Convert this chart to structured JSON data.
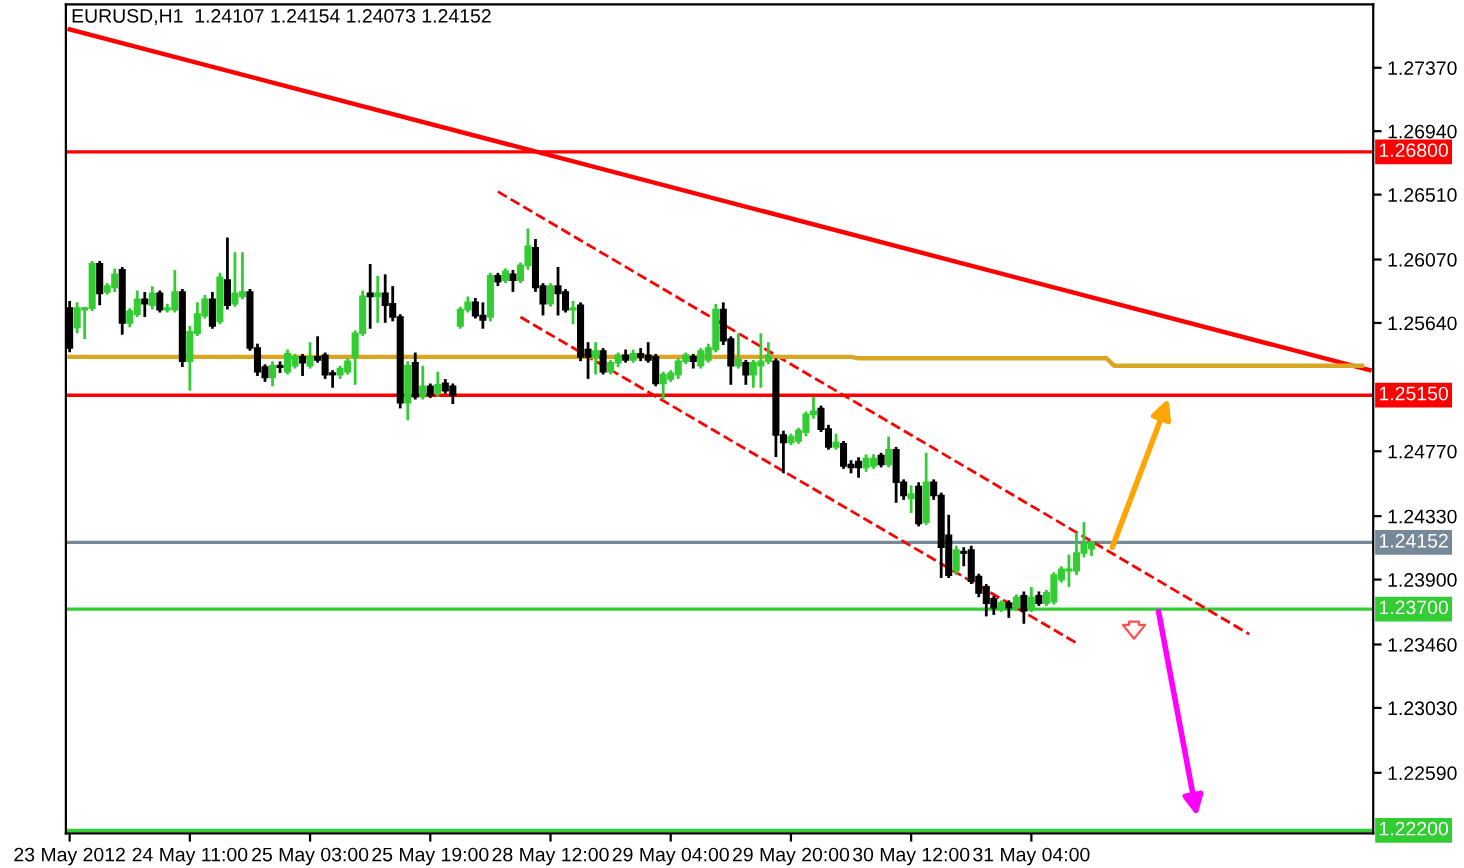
{
  "chart_data": {
    "type": "candlestick",
    "title": "EURUSD,H1  1.24107 1.24154 1.24073 1.24152",
    "categories": [
      "23 May 2012",
      null,
      null,
      null,
      null,
      null,
      null,
      null,
      null,
      null,
      null,
      null,
      null,
      null,
      null,
      null,
      "24 May 11:00",
      null,
      null,
      null,
      null,
      null,
      null,
      null,
      null,
      null,
      null,
      null,
      null,
      null,
      null,
      null,
      "25 May 03:00",
      null,
      null,
      null,
      null,
      null,
      null,
      null,
      null,
      null,
      null,
      null,
      null,
      null,
      null,
      null,
      "25 May 19:00",
      null,
      null,
      null,
      null,
      null,
      null,
      null,
      null,
      null,
      null,
      null,
      null,
      null,
      null,
      null,
      "28 May 12:00",
      null,
      null,
      null,
      null,
      null,
      null,
      null,
      null,
      null,
      null,
      null,
      null,
      null,
      null,
      null,
      "29 May 04:00",
      null,
      null,
      null,
      null,
      null,
      null,
      null,
      null,
      null,
      null,
      null,
      null,
      null,
      null,
      null,
      "29 May 20:00",
      null,
      null,
      null,
      null,
      null,
      null,
      null,
      null,
      null,
      null,
      null,
      null,
      null,
      null,
      null,
      "30 May 12:00",
      null,
      null,
      null,
      null,
      null,
      null,
      null,
      null,
      null,
      null,
      null,
      null,
      null,
      null,
      null,
      "31 May 04:00",
      null,
      null,
      null,
      null,
      null,
      null,
      null,
      null,
      null,
      null,
      null,
      null,
      null,
      null,
      null,
      null,
      null,
      null,
      null,
      null,
      null,
      null,
      null,
      null,
      null,
      null,
      null,
      null,
      null,
      null,
      null,
      null,
      null,
      null,
      null,
      null,
      null,
      null,
      null,
      null,
      null,
      null,
      null,
      null,
      null
    ],
    "ohlc": [
      [
        1.2574,
        1.2578,
        1.2545,
        1.2547
      ],
      [
        1.2561,
        1.2577,
        1.2558,
        1.2574
      ],
      [
        1.2573,
        1.2574,
        1.2554,
        1.2574
      ],
      [
        1.2574,
        1.2605,
        1.2573,
        1.2604
      ],
      [
        1.2604,
        1.2605,
        1.2577,
        1.2584
      ],
      [
        1.2585,
        1.259,
        1.2584,
        1.2589
      ],
      [
        1.2588,
        1.26,
        1.2586,
        1.2597
      ],
      [
        1.26,
        1.2601,
        1.2557,
        1.2564
      ],
      [
        1.2564,
        1.2573,
        1.2562,
        1.2572
      ],
      [
        1.257,
        1.2585,
        1.2569,
        1.258
      ],
      [
        1.258,
        1.2584,
        1.2569,
        1.2577
      ],
      [
        1.2576,
        1.2588,
        1.2574,
        1.2584
      ],
      [
        1.2584,
        1.2585,
        1.2572,
        1.2573
      ],
      [
        1.2573,
        1.2576,
        1.2572,
        1.2574
      ],
      [
        1.2573,
        1.2599,
        1.2572,
        1.2585
      ],
      [
        1.2585,
        1.2586,
        1.2535,
        1.2538
      ],
      [
        1.2538,
        1.2561,
        1.2519,
        1.2558
      ],
      [
        1.2557,
        1.2577,
        1.2556,
        1.257
      ],
      [
        1.2569,
        1.2582,
        1.2568,
        1.258
      ],
      [
        1.258,
        1.2584,
        1.2561,
        1.2562
      ],
      [
        1.2565,
        1.2597,
        1.2564,
        1.2595
      ],
      [
        1.2593,
        1.2621,
        1.2574,
        1.2576
      ],
      [
        1.2577,
        1.2611,
        1.2576,
        1.2584
      ],
      [
        1.2582,
        1.2611,
        1.2581,
        1.2585
      ],
      [
        1.2585,
        1.2586,
        1.2546,
        1.2547
      ],
      [
        1.2547,
        1.2549,
        1.2529,
        1.2531
      ],
      [
        1.2534,
        1.2535,
        1.2525,
        1.2527
      ],
      [
        1.2527,
        1.2537,
        1.2522,
        1.2535
      ],
      [
        1.2535,
        1.2537,
        1.2531,
        1.2534
      ],
      [
        1.2531,
        1.2545,
        1.253,
        1.2543
      ],
      [
        1.2535,
        1.2542,
        1.2534,
        1.2541
      ],
      [
        1.2541,
        1.2542,
        1.2529,
        1.2537
      ],
      [
        1.2535,
        1.255,
        1.2534,
        1.2541
      ],
      [
        1.2541,
        1.2554,
        1.2538,
        1.2539
      ],
      [
        1.2542,
        1.2543,
        1.2527,
        1.2529
      ],
      [
        1.253,
        1.2531,
        1.2521,
        1.2529
      ],
      [
        1.2529,
        1.2534,
        1.2527,
        1.2533
      ],
      [
        1.2531,
        1.2539,
        1.253,
        1.2538
      ],
      [
        1.2541,
        1.2558,
        1.2523,
        1.2557
      ],
      [
        1.2557,
        1.2585,
        1.2556,
        1.2582
      ],
      [
        1.2584,
        1.2603,
        1.2561,
        1.2582
      ],
      [
        1.2582,
        1.2595,
        1.2565,
        1.2584
      ],
      [
        1.2584,
        1.2596,
        1.2565,
        1.2576
      ],
      [
        1.2577,
        1.2588,
        1.2566,
        1.2568
      ],
      [
        1.2568,
        1.2569,
        1.2507,
        1.251
      ],
      [
        1.251,
        1.2537,
        1.2499,
        1.2535
      ],
      [
        1.2537,
        1.2543,
        1.2513,
        1.2514
      ],
      [
        1.2514,
        1.2534,
        1.2513,
        1.2521
      ],
      [
        1.2521,
        1.2522,
        1.2514,
        1.2515
      ],
      [
        1.2517,
        1.253,
        1.2515,
        1.2522
      ],
      [
        1.2523,
        1.2525,
        1.2517,
        1.2518
      ],
      [
        1.2521,
        1.2522,
        1.251,
        1.2515
      ],
      [
        1.2562,
        1.2574,
        1.2561,
        1.2573
      ],
      [
        1.2573,
        1.2581,
        1.2572,
        1.2578
      ],
      [
        1.2578,
        1.258,
        1.2568,
        1.2569
      ],
      [
        1.2569,
        1.2577,
        1.2561,
        1.2566
      ],
      [
        1.2568,
        1.2597,
        1.2566,
        1.2596
      ],
      [
        1.2596,
        1.2597,
        1.259,
        1.2592
      ],
      [
        1.2593,
        1.26,
        1.2592,
        1.2599
      ],
      [
        1.2597,
        1.2599,
        1.2586,
        1.2593
      ],
      [
        1.2593,
        1.2604,
        1.2592,
        1.2603
      ],
      [
        1.2603,
        1.2627,
        1.2601,
        1.2616
      ],
      [
        1.2615,
        1.262,
        1.2586,
        1.2588
      ],
      [
        1.2589,
        1.259,
        1.257,
        1.2577
      ],
      [
        1.2577,
        1.259,
        1.2576,
        1.2589
      ],
      [
        1.2589,
        1.2601,
        1.257,
        1.2584
      ],
      [
        1.2585,
        1.2586,
        1.2572,
        1.2573
      ],
      [
        1.2573,
        1.2578,
        1.2564,
        1.2574
      ],
      [
        1.2576,
        1.2577,
        1.2539,
        1.2541
      ],
      [
        1.2546,
        1.255,
        1.2527,
        1.2541
      ],
      [
        1.2541,
        1.255,
        1.253,
        1.2545
      ],
      [
        1.2545,
        1.2546,
        1.253,
        1.2531
      ],
      [
        1.2531,
        1.2538,
        1.253,
        1.2537
      ],
      [
        1.2537,
        1.2543,
        1.2535,
        1.2542
      ],
      [
        1.2542,
        1.2545,
        1.2538,
        1.2539
      ],
      [
        1.2539,
        1.2545,
        1.2538,
        1.2543
      ],
      [
        1.2543,
        1.2546,
        1.2539,
        1.2541
      ],
      [
        1.2542,
        1.255,
        1.2538,
        1.2539
      ],
      [
        1.2541,
        1.2542,
        1.2522,
        1.2523
      ],
      [
        1.2523,
        1.253,
        1.2513,
        1.2529
      ],
      [
        1.2526,
        1.2531,
        1.2525,
        1.253
      ],
      [
        1.2529,
        1.2539,
        1.2527,
        1.2538
      ],
      [
        1.2538,
        1.2543,
        1.2537,
        1.2542
      ],
      [
        1.2541,
        1.2542,
        1.2534,
        1.2538
      ],
      [
        1.2535,
        1.2546,
        1.2534,
        1.2545
      ],
      [
        1.2539,
        1.2549,
        1.2538,
        1.2547
      ],
      [
        1.2546,
        1.2576,
        1.2545,
        1.2573
      ],
      [
        1.2573,
        1.2577,
        1.255,
        1.2552
      ],
      [
        1.2553,
        1.2554,
        1.2523,
        1.2535
      ],
      [
        1.2535,
        1.2556,
        1.2534,
        1.2539
      ],
      [
        1.2537,
        1.2538,
        1.2523,
        1.2529
      ],
      [
        1.2529,
        1.2538,
        1.2521,
        1.2537
      ],
      [
        1.2535,
        1.2556,
        1.2521,
        1.2538
      ],
      [
        1.2538,
        1.255,
        1.2537,
        1.2542
      ],
      [
        1.2538,
        1.2539,
        1.2474,
        1.2488
      ],
      [
        1.2488,
        1.249,
        1.2463,
        1.2483
      ],
      [
        1.2483,
        1.2488,
        1.2482,
        1.2487
      ],
      [
        1.2484,
        1.2492,
        1.2483,
        1.2491
      ],
      [
        1.249,
        1.2503,
        1.2488,
        1.2502
      ],
      [
        1.2502,
        1.2513,
        1.25,
        1.2504
      ],
      [
        1.2506,
        1.2507,
        1.2491,
        1.2492
      ],
      [
        1.2492,
        1.2494,
        1.2479,
        1.248
      ],
      [
        1.248,
        1.2488,
        1.2479,
        1.2483
      ],
      [
        1.2482,
        1.2483,
        1.2466,
        1.2467
      ],
      [
        1.2468,
        1.247,
        1.2463,
        1.2466
      ],
      [
        1.247,
        1.2472,
        1.246,
        1.2466
      ],
      [
        1.2466,
        1.2474,
        1.2464,
        1.2472
      ],
      [
        1.2467,
        1.2474,
        1.2466,
        1.2472
      ],
      [
        1.2474,
        1.2475,
        1.2467,
        1.2468
      ],
      [
        1.2468,
        1.2486,
        1.2467,
        1.2478
      ],
      [
        1.2478,
        1.2479,
        1.2443,
        1.2456
      ],
      [
        1.2456,
        1.2457,
        1.2445,
        1.2447
      ],
      [
        1.2445,
        1.2453,
        1.2436,
        1.2448
      ],
      [
        1.2453,
        1.2455,
        1.2427,
        1.2428
      ],
      [
        1.2429,
        1.2475,
        1.2428,
        1.2456
      ],
      [
        1.2456,
        1.2457,
        1.2445,
        1.2447
      ],
      [
        1.2447,
        1.2448,
        1.2392,
        1.2412
      ],
      [
        1.242,
        1.2433,
        1.2392,
        1.2393
      ],
      [
        1.2396,
        1.2412,
        1.2394,
        1.241
      ],
      [
        1.2409,
        1.2411,
        1.24,
        1.2408
      ],
      [
        1.241,
        1.2412,
        1.2388,
        1.2389
      ],
      [
        1.2392,
        1.2393,
        1.2379,
        1.2381
      ],
      [
        1.2385,
        1.2386,
        1.2366,
        1.2374
      ],
      [
        1.2377,
        1.2378,
        1.2367,
        1.2371
      ],
      [
        1.237,
        1.2375,
        1.2369,
        1.2374
      ],
      [
        1.2374,
        1.2375,
        1.2365,
        1.2371
      ],
      [
        1.2371,
        1.2379,
        1.237,
        1.2378
      ],
      [
        1.2379,
        1.2381,
        1.2361,
        1.2369
      ],
      [
        1.237,
        1.2384,
        1.2369,
        1.2378
      ],
      [
        1.2379,
        1.2381,
        1.2373,
        1.2374
      ],
      [
        1.2374,
        1.2382,
        1.2373,
        1.2381
      ],
      [
        1.2375,
        1.2394,
        1.2374,
        1.2393
      ],
      [
        1.239,
        1.2398,
        1.2389,
        1.2397
      ],
      [
        1.2396,
        1.2406,
        1.2386,
        1.2397
      ],
      [
        1.2396,
        1.2421,
        1.2394,
        1.2408
      ],
      [
        1.2408,
        1.2428,
        1.2406,
        1.2414
      ],
      [
        1.2411,
        1.2415,
        1.2407,
        1.2415
      ],
      null,
      null,
      null,
      null,
      null,
      null,
      null,
      null,
      null,
      null,
      null,
      null,
      null,
      null,
      null,
      null,
      null,
      null,
      null,
      null,
      null,
      null,
      null,
      null,
      null,
      null,
      null,
      null,
      null,
      null,
      null,
      null,
      null,
      null,
      null,
      null,
      null
    ],
    "series": [
      {
        "type": "line",
        "color": "#ff0000",
        "line_style": "solid",
        "values": [
          1.2763,
          null,
          null,
          null,
          null,
          null,
          null,
          null,
          null,
          null,
          null,
          null,
          null,
          null,
          null,
          null,
          null,
          null,
          null,
          null,
          null,
          null,
          null,
          null,
          null,
          null,
          null,
          null,
          null,
          null,
          null,
          null,
          null,
          null,
          null,
          null,
          null,
          null,
          null,
          null,
          null,
          null,
          null,
          null,
          null,
          null,
          null,
          null,
          null,
          null,
          null,
          null,
          null,
          null,
          null,
          null,
          null,
          null,
          null,
          null,
          null,
          null,
          null,
          null,
          null,
          null,
          null,
          null,
          null,
          null,
          null,
          null,
          null,
          null,
          null,
          null,
          null,
          null,
          null,
          null,
          null,
          null,
          null,
          null,
          null,
          null,
          null,
          null,
          null,
          null,
          null,
          null,
          null,
          null,
          null,
          null,
          null,
          null,
          null,
          null,
          null,
          null,
          null,
          null,
          null,
          null,
          null,
          null,
          null,
          null,
          null,
          null,
          null,
          null,
          null,
          null,
          null,
          null,
          null,
          null,
          null,
          null,
          null,
          null,
          null,
          null,
          null,
          null,
          null,
          null,
          null,
          null,
          null,
          null,
          null,
          null,
          null,
          null,
          null,
          null,
          null,
          null,
          null,
          null,
          null,
          null,
          null,
          null,
          null,
          null,
          null,
          null,
          null,
          null,
          null,
          null,
          null,
          null,
          null,
          null,
          null,
          null,
          null,
          null,
          null,
          null,
          null,
          null,
          null,
          null,
          null,
          null,
          null,
          1.2532
        ]
      },
      {
        "type": "line",
        "color": "#ff0000",
        "line_style": "dashed",
        "values": [
          null,
          null,
          null,
          null,
          null,
          null,
          null,
          null,
          null,
          null,
          null,
          null,
          null,
          null,
          null,
          null,
          null,
          null,
          null,
          null,
          null,
          null,
          null,
          null,
          null,
          null,
          null,
          null,
          null,
          null,
          null,
          null,
          null,
          null,
          null,
          null,
          null,
          null,
          null,
          null,
          null,
          null,
          null,
          null,
          null,
          null,
          null,
          null,
          null,
          null,
          null,
          null,
          null,
          null,
          null,
          null,
          null,
          1.2653,
          null,
          null,
          null,
          null,
          null,
          null,
          null,
          null,
          null,
          null,
          null,
          null,
          null,
          null,
          null,
          null,
          null,
          null,
          null,
          null,
          null,
          null,
          null,
          null,
          null,
          null,
          null,
          null,
          null,
          null,
          null,
          null,
          null,
          null,
          null,
          null,
          null,
          null,
          null,
          null,
          null,
          null,
          null,
          null,
          null,
          null,
          null,
          null,
          null,
          null,
          null,
          null,
          null,
          null,
          null,
          null,
          null,
          null,
          null,
          null,
          null,
          null,
          null,
          null,
          null,
          null,
          null,
          null,
          null,
          null,
          null,
          null,
          null,
          null,
          null,
          null,
          null,
          null,
          null,
          null,
          null,
          null,
          null,
          null,
          null,
          null,
          null,
          null,
          null,
          null,
          null,
          null,
          null,
          null,
          null,
          null,
          null,
          null,
          null,
          1.2353,
          null,
          null,
          null,
          null,
          null,
          null,
          null,
          null,
          null,
          null,
          null,
          null,
          null,
          null,
          null,
          null
        ]
      },
      {
        "type": "line",
        "color": "#ff0000",
        "line_style": "dashed",
        "values": [
          null,
          null,
          null,
          null,
          null,
          null,
          null,
          null,
          null,
          null,
          null,
          null,
          null,
          null,
          null,
          null,
          null,
          null,
          null,
          null,
          null,
          null,
          null,
          null,
          null,
          null,
          null,
          null,
          null,
          null,
          null,
          null,
          null,
          null,
          null,
          null,
          null,
          null,
          null,
          null,
          null,
          null,
          null,
          null,
          null,
          null,
          null,
          null,
          null,
          null,
          null,
          null,
          null,
          null,
          null,
          null,
          null,
          null,
          null,
          null,
          1.2568,
          null,
          null,
          null,
          null,
          null,
          null,
          null,
          null,
          null,
          null,
          null,
          null,
          null,
          null,
          null,
          null,
          null,
          null,
          null,
          null,
          null,
          null,
          null,
          null,
          null,
          null,
          null,
          null,
          null,
          null,
          null,
          null,
          null,
          null,
          null,
          null,
          null,
          null,
          null,
          null,
          null,
          null,
          null,
          null,
          null,
          null,
          null,
          null,
          null,
          null,
          null,
          null,
          null,
          null,
          null,
          null,
          null,
          null,
          null,
          null,
          null,
          null,
          null,
          null,
          null,
          null,
          null,
          null,
          null,
          null,
          null,
          null,
          null,
          1.2347,
          null,
          null,
          null,
          null,
          null,
          null,
          null,
          null,
          null,
          null,
          null,
          null,
          null,
          null,
          null,
          null,
          null,
          null,
          null,
          null,
          null,
          null,
          null,
          null,
          null,
          null,
          null,
          null,
          null,
          null,
          null,
          null,
          null,
          null,
          null,
          null,
          null,
          null,
          null
        ]
      },
      {
        "type": "line",
        "color": "#daa520",
        "line_style": "solid",
        "values": [
          1.2541,
          null,
          null,
          null,
          null,
          null,
          null,
          null,
          null,
          null,
          null,
          null,
          null,
          null,
          null,
          null,
          null,
          null,
          null,
          null,
          null,
          null,
          null,
          null,
          null,
          null,
          null,
          null,
          null,
          null,
          null,
          null,
          null,
          null,
          null,
          null,
          null,
          null,
          null,
          null,
          null,
          null,
          null,
          null,
          null,
          null,
          null,
          null,
          null,
          null,
          null,
          null,
          null,
          null,
          null,
          null,
          null,
          null,
          null,
          null,
          null,
          null,
          null,
          null,
          null,
          null,
          null,
          null,
          null,
          null,
          null,
          null,
          null,
          null,
          null,
          null,
          null,
          null,
          null,
          null,
          null,
          null,
          null,
          null,
          null,
          null,
          null,
          null,
          null,
          null,
          null,
          null,
          null,
          null,
          null,
          null,
          null,
          null,
          null,
          null,
          null,
          null,
          null,
          null,
          1.2541,
          1.254,
          null,
          null,
          null,
          null,
          null,
          null,
          null,
          null,
          null,
          null,
          null,
          null,
          null,
          null,
          null,
          null,
          null,
          null,
          null,
          null,
          null,
          null,
          null,
          null,
          null,
          null,
          null,
          null,
          null,
          null,
          null,
          null,
          1.254,
          1.2535,
          null,
          null,
          null,
          null,
          null,
          null,
          null,
          null,
          null,
          null,
          null,
          null,
          null,
          null,
          null,
          null,
          null,
          null,
          null,
          null,
          null,
          null,
          null,
          null,
          null,
          null,
          null,
          null,
          null,
          null,
          null,
          null,
          1.2535,
          null
        ]
      }
    ],
    "ylim": [
      1.2218,
      1.278
    ],
    "yticks": [
      {
        "value": 1.2737,
        "label": "1.27370"
      },
      {
        "value": 1.2694,
        "label": "1.26940"
      },
      {
        "value": 1.2651,
        "label": "1.26510"
      },
      {
        "value": 1.2607,
        "label": "1.26070"
      },
      {
        "value": 1.2564,
        "label": "1.25640"
      },
      {
        "value": 1.2477,
        "label": "1.24770"
      },
      {
        "value": 1.2433,
        "label": "1.24330"
      },
      {
        "value": 1.239,
        "label": "1.23900"
      },
      {
        "value": 1.2346,
        "label": "1.23460"
      },
      {
        "value": 1.2303,
        "label": "1.23030"
      },
      {
        "value": 1.2259,
        "label": "1.22590"
      }
    ],
    "ref_lines": [
      {
        "axis": "y",
        "value": 1.268,
        "label": "1.26800",
        "color": "#ff0000"
      },
      {
        "axis": "y",
        "value": 1.2515,
        "label": "1.25150",
        "color": "#ff0000"
      },
      {
        "axis": "y",
        "value": 1.24152,
        "label": "1.24152",
        "color": "#778899"
      },
      {
        "axis": "y",
        "value": 1.237,
        "label": "1.23700",
        "color": "#32cd32"
      },
      {
        "axis": "y",
        "value": 1.222,
        "label": "1.22200",
        "color": "#32cd32"
      }
    ]
  }
}
